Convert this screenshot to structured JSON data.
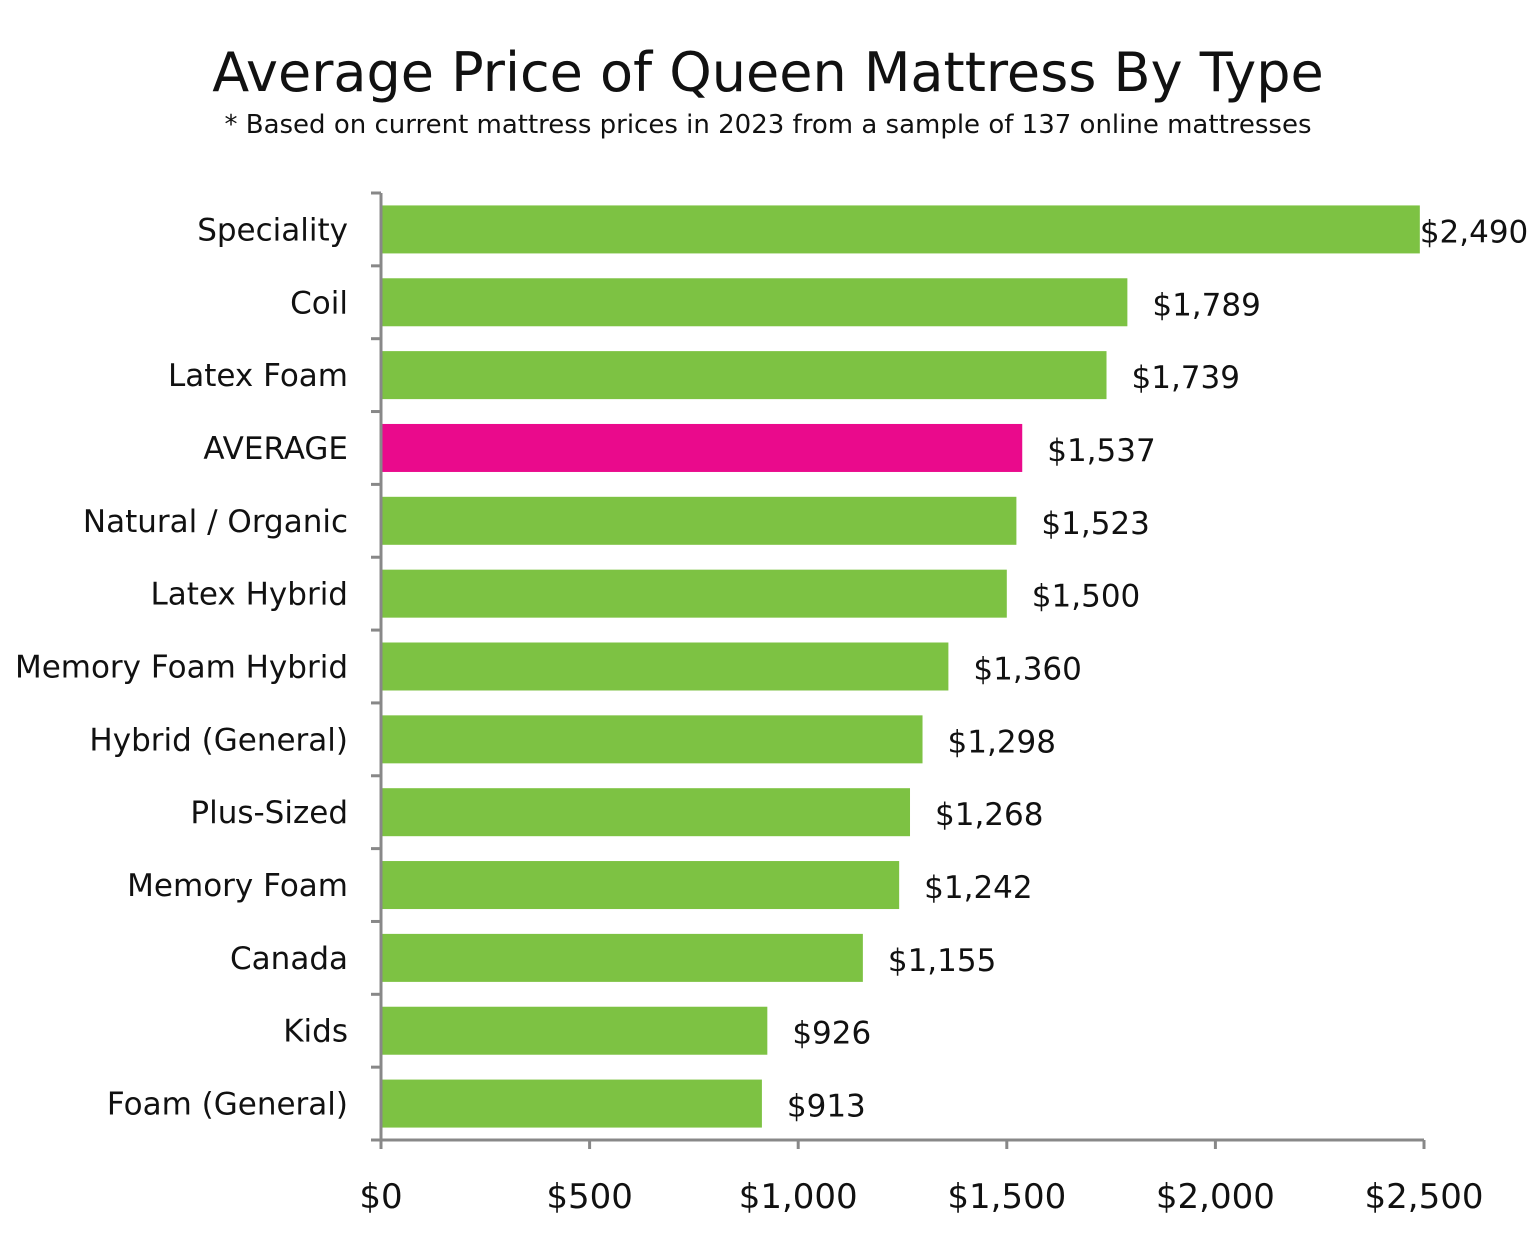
{
  "chart_data": {
    "type": "bar",
    "orientation": "horizontal",
    "title": "Average Price of Queen Mattress By Type",
    "subtitle": "* Based on current mattress prices in 2023 from a sample of 137 online mattresses",
    "xlabel": "",
    "ylabel": "",
    "xlim": [
      0,
      2500
    ],
    "x_ticks": [
      0,
      500,
      1000,
      1500,
      2000,
      2500
    ],
    "x_tick_labels": [
      "$0",
      "$500",
      "$1,000",
      "$1,500",
      "$2,000",
      "$2,500"
    ],
    "grid": false,
    "categories": [
      "Speciality",
      "Coil",
      "Latex Foam",
      "AVERAGE",
      "Natural / Organic",
      "Latex Hybrid",
      "Memory Foam Hybrid",
      "Hybrid (General)",
      "Plus-Sized",
      "Memory Foam",
      "Canada",
      "Kids",
      "Foam (General)"
    ],
    "values": [
      2490,
      1789,
      1739,
      1537,
      1523,
      1500,
      1360,
      1298,
      1268,
      1242,
      1155,
      926,
      913
    ],
    "data_labels": [
      "$2,490",
      "$1,789",
      "$1,739",
      "$1,537",
      "$1,523",
      "$1,500",
      "$1,360",
      "$1,298",
      "$1,268",
      "$1,242",
      "$1,155",
      "$926",
      "$913"
    ],
    "colors": {
      "default": "#7dc243",
      "highlight": "#ea0a8c",
      "highlight_category": "AVERAGE",
      "axis": "#888888"
    }
  }
}
